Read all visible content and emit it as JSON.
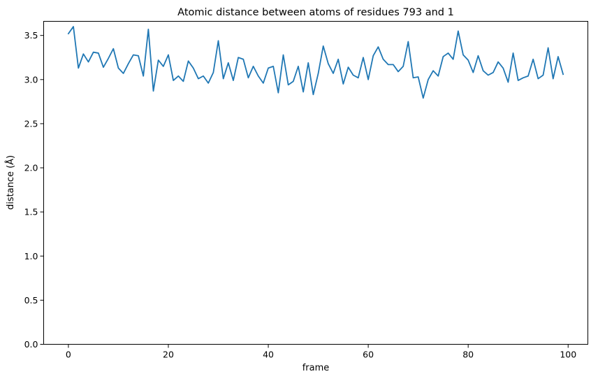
{
  "chart_data": {
    "type": "line",
    "title": "Atomic distance between atoms of residues 793 and 1",
    "xlabel": "frame",
    "ylabel": "distance (Å)",
    "xlim": [
      -4.95,
      103.95
    ],
    "ylim": [
      0.0,
      3.66
    ],
    "xticks": [
      0,
      20,
      40,
      60,
      80,
      100
    ],
    "yticks": [
      0.0,
      0.5,
      1.0,
      1.5,
      2.0,
      2.5,
      3.0,
      3.5
    ],
    "xtick_labels": [
      "0",
      "20",
      "40",
      "60",
      "80",
      "100"
    ],
    "ytick_labels": [
      "0.0",
      "0.5",
      "1.0",
      "1.5",
      "2.0",
      "2.5",
      "3.0",
      "3.5"
    ],
    "grid": false,
    "series": [
      {
        "color": "#1f77b4",
        "x": [
          0,
          1,
          2,
          3,
          4,
          5,
          6,
          7,
          8,
          9,
          10,
          11,
          12,
          13,
          14,
          15,
          16,
          17,
          18,
          19,
          20,
          21,
          22,
          23,
          24,
          25,
          26,
          27,
          28,
          29,
          30,
          31,
          32,
          33,
          34,
          35,
          36,
          37,
          38,
          39,
          40,
          41,
          42,
          43,
          44,
          45,
          46,
          47,
          48,
          49,
          50,
          51,
          52,
          53,
          54,
          55,
          56,
          57,
          58,
          59,
          60,
          61,
          62,
          63,
          64,
          65,
          66,
          67,
          68,
          69,
          70,
          71,
          72,
          73,
          74,
          75,
          76,
          77,
          78,
          79,
          80,
          81,
          82,
          83,
          84,
          85,
          86,
          87,
          88,
          89,
          90,
          91,
          92,
          93,
          94,
          95,
          96,
          97,
          98,
          99
        ],
        "y": [
          3.52,
          3.6,
          3.13,
          3.29,
          3.2,
          3.31,
          3.3,
          3.14,
          3.24,
          3.35,
          3.13,
          3.07,
          3.18,
          3.28,
          3.27,
          3.04,
          3.57,
          2.87,
          3.22,
          3.15,
          3.28,
          2.99,
          3.04,
          2.98,
          3.21,
          3.13,
          3.01,
          3.04,
          2.96,
          3.08,
          3.44,
          3.01,
          3.19,
          2.99,
          3.25,
          3.23,
          3.02,
          3.15,
          3.04,
          2.96,
          3.13,
          3.15,
          2.85,
          3.28,
          2.94,
          2.98,
          3.15,
          2.86,
          3.19,
          2.83,
          3.07,
          3.38,
          3.18,
          3.07,
          3.23,
          2.95,
          3.14,
          3.05,
          3.02,
          3.25,
          3.0,
          3.27,
          3.37,
          3.23,
          3.17,
          3.17,
          3.09,
          3.15,
          3.43,
          3.02,
          3.03,
          2.79,
          3.0,
          3.1,
          3.04,
          3.26,
          3.3,
          3.23,
          3.55,
          3.28,
          3.22,
          3.08,
          3.27,
          3.1,
          3.05,
          3.08,
          3.2,
          3.13,
          2.97,
          3.3,
          2.99,
          3.02,
          3.04,
          3.23,
          3.01,
          3.05,
          3.36,
          3.01,
          3.26,
          3.06
        ]
      }
    ]
  }
}
